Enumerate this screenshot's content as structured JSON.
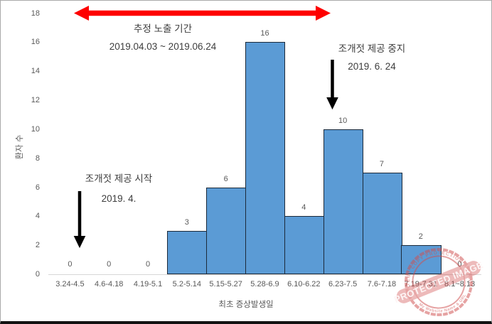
{
  "chart_data": {
    "type": "bar",
    "title": "",
    "categories": [
      "3.24-4.5",
      "4.6-4.18",
      "4.19-5.1",
      "5.2-5.14",
      "5.15-5.27",
      "5.28-6.9",
      "6.10-6.22",
      "6.23-7.5",
      "7.6-7.18",
      "7.19-7.31",
      "8.1~8.13"
    ],
    "values": [
      0,
      0,
      0,
      3,
      6,
      16,
      4,
      10,
      7,
      2,
      0
    ],
    "xlabel": "최초 증상발생일",
    "ylabel": "환자 수",
    "ylim": [
      0,
      18
    ],
    "ytick_step": 2,
    "grid": false,
    "data_labels": true,
    "legend": "none",
    "bar_fill": "#5b9bd5",
    "bar_border": "#1c2a3a",
    "axis_text_color": "#595959"
  },
  "annotations": {
    "exposure_period": {
      "line1": "추정 노출 기간",
      "line2": "2019.04.03 ~ 2019.06.24",
      "arrow_color": "#fe0000"
    },
    "serving_stop": {
      "line1": "조개젓 제공 중지",
      "line2": "2019. 6. 24",
      "arrow_color": "#000000"
    },
    "serving_start": {
      "line1": "조개젓 제공 시작",
      "line2": "2019. 4.",
      "arrow_color": "#000000"
    }
  },
  "watermark": {
    "ribbon": "PROTECTED IMAGE",
    "arc_top": "CONTENT COPY PROTECTION PLUGIN",
    "arc_bottom": "My Website Name & URL",
    "color": "#d05050"
  }
}
